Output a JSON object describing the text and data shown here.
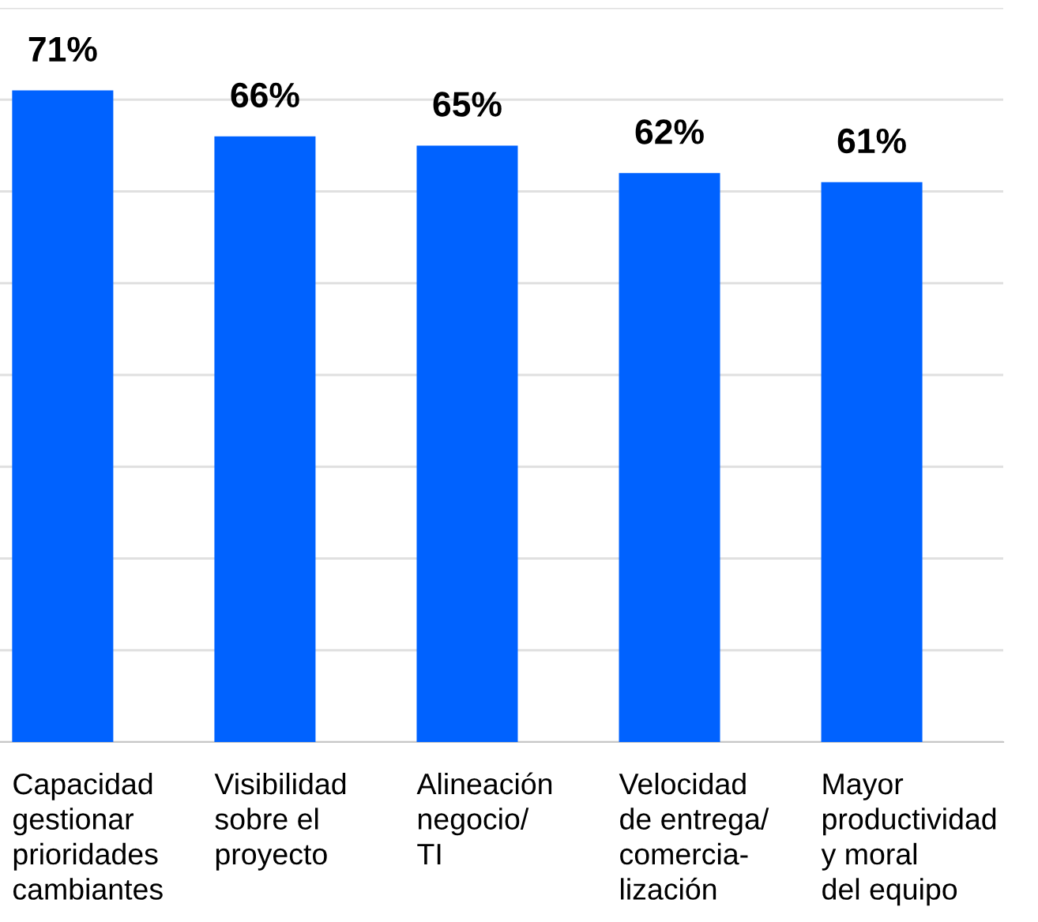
{
  "chart_data": {
    "type": "bar",
    "categories": [
      "Capacidad\ngestionar\nprioridades\ncambiantes",
      "Visibilidad\nsobre el\nproyecto",
      "Alineación\nnegocio/\nTI",
      "Velocidad\nde entrega/\ncomercia-\nlización",
      "Mayor\nproductividad\ny moral\ndel equipo"
    ],
    "values": [
      71,
      66,
      65,
      62,
      61
    ],
    "value_labels": [
      "71%",
      "66%",
      "65%",
      "62%",
      "61%"
    ],
    "color": "#0062ff",
    "ylim": [
      0,
      80
    ],
    "yticks": [
      {
        "value": 0,
        "label": null
      },
      {
        "value": 10,
        "label": null
      },
      {
        "value": 20,
        "label": null
      },
      {
        "value": 30,
        "label": null
      },
      {
        "value": 40,
        "label": null
      },
      {
        "value": 50,
        "label": null
      },
      {
        "value": 60,
        "label": null
      },
      {
        "value": 70,
        "label": null
      },
      {
        "value": 80,
        "label": null
      }
    ],
    "grid": "y",
    "tick_labels": "x",
    "legend": false
  }
}
